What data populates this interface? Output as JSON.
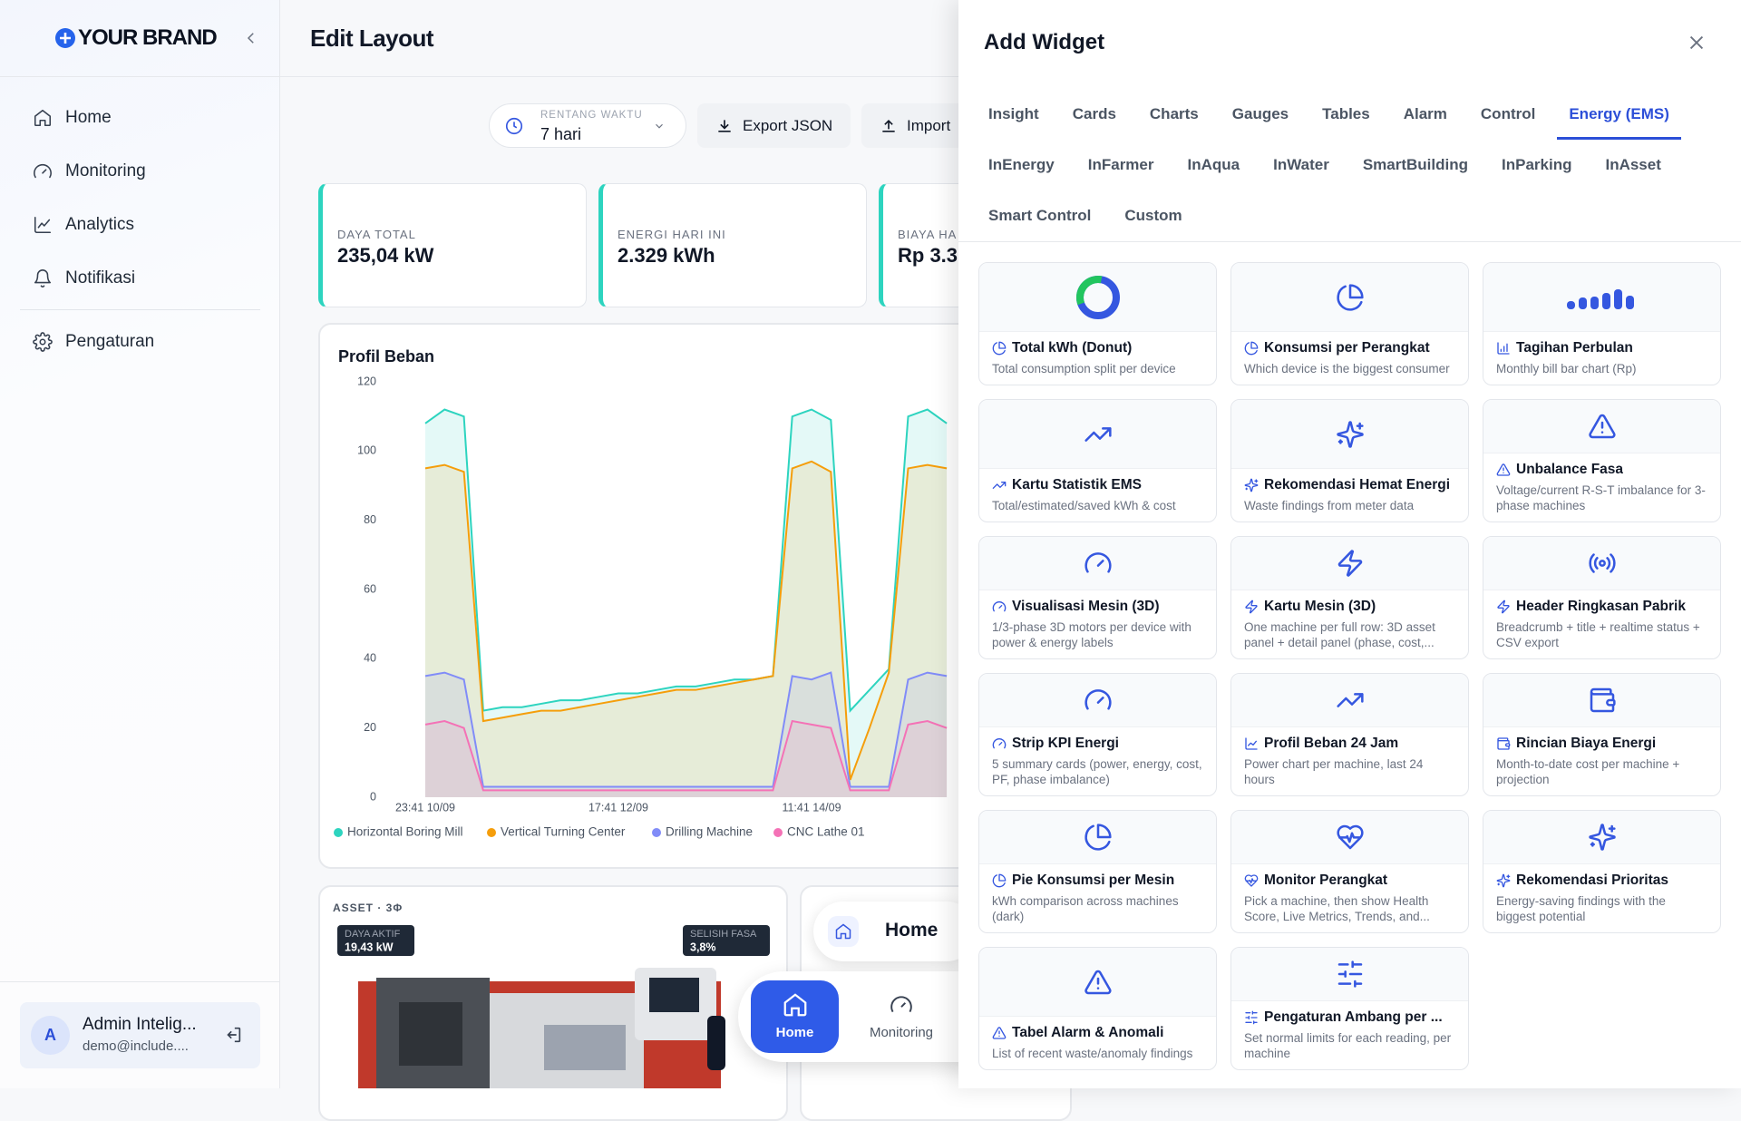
{
  "sidebar": {
    "brand": "YOUR BRAND",
    "nav": [
      "Home",
      "Monitoring",
      "Analytics",
      "Notifikasi",
      "Pengaturan"
    ],
    "user": {
      "initial": "A",
      "name": "Admin Intelig...",
      "email": "demo@include...."
    }
  },
  "header": {
    "title": "Edit Layout"
  },
  "toolbar": {
    "range_label": "RENTANG WAKTU",
    "range_value": "7 hari",
    "export": "Export JSON",
    "import": "Import"
  },
  "kpis": [
    {
      "label": "DAYA TOTAL",
      "value": "235,04 kW"
    },
    {
      "label": "ENERGI HARI INI",
      "value": "2.329 kWh"
    },
    {
      "label": "BIAYA HA",
      "value": "Rp 3.3"
    }
  ],
  "load_chart": {
    "type": "line",
    "title": "Profil Beban",
    "ylim": [
      0,
      120
    ],
    "yticks": [
      0,
      20,
      40,
      60,
      80,
      100,
      120
    ],
    "categories": [
      "23:41 10/09",
      null,
      null,
      null,
      null,
      null,
      null,
      null,
      null,
      null,
      "17:41 12/09",
      null,
      null,
      null,
      null,
      null,
      null,
      null,
      null,
      null,
      "11:41 14/09",
      null,
      null,
      null,
      null,
      null,
      null,
      null
    ],
    "series": [
      {
        "name": "Horizontal Boring Mill",
        "color": "#2dd4bf",
        "values": [
          108,
          112,
          110,
          25,
          26,
          26,
          27,
          28,
          28,
          29,
          30,
          30,
          31,
          32,
          32,
          33,
          34,
          34,
          35,
          110,
          112,
          109,
          25,
          31,
          37,
          110,
          112,
          108
        ]
      },
      {
        "name": "Vertical Turning Center",
        "color": "#f59e0b",
        "values": [
          95,
          96,
          94,
          22,
          23,
          24,
          25,
          25,
          26,
          27,
          28,
          29,
          30,
          31,
          31,
          32,
          33,
          34,
          35,
          95,
          97,
          94,
          5,
          20,
          36,
          95,
          96,
          95
        ]
      },
      {
        "name": "Drilling Machine",
        "color": "#818cf8",
        "values": [
          35,
          36,
          34,
          3,
          3,
          3,
          3,
          3,
          3,
          3,
          3,
          3,
          3,
          3,
          3,
          3,
          3,
          3,
          3,
          35,
          34,
          36,
          3,
          3,
          3,
          34,
          36,
          35
        ]
      },
      {
        "name": "CNC Lathe 01",
        "color": "#f472b6",
        "values": [
          21,
          22,
          20,
          2,
          2,
          2,
          2,
          2,
          2,
          2,
          2,
          2,
          2,
          2,
          2,
          2,
          2,
          2,
          2,
          22,
          21,
          20,
          2,
          2,
          2,
          21,
          22,
          20
        ]
      }
    ]
  },
  "asset": {
    "label": "ASSET · 3Φ",
    "badges": [
      {
        "label": "DAYA AKTIF",
        "value": "19,43 kW"
      },
      {
        "label": "SELISIH FASA",
        "value": "3,8%"
      }
    ]
  },
  "floating": {
    "chip": "Home",
    "nav": [
      "Home",
      "Monitoring"
    ]
  },
  "drawer": {
    "title": "Add Widget",
    "active_tab": "Energy (EMS)",
    "tabs": [
      "Insight",
      "Cards",
      "Charts",
      "Gauges",
      "Tables",
      "Alarm",
      "Control",
      "Energy (EMS)",
      "InEnergy",
      "InFarmer",
      "InAqua",
      "InWater",
      "SmartBuilding",
      "InParking",
      "InAsset",
      "Smart Control",
      "Custom"
    ],
    "widgets": [
      {
        "title": "Total kWh (Donut)",
        "desc": "Total consumption split per device"
      },
      {
        "title": "Konsumsi per Perangkat",
        "desc": "Which device is the biggest consumer"
      },
      {
        "title": "Tagihan Perbulan",
        "desc": "Monthly bill bar chart (Rp)"
      },
      {
        "title": "Kartu Statistik EMS",
        "desc": "Total/estimated/saved kWh & cost"
      },
      {
        "title": "Rekomendasi Hemat Energi",
        "desc": "Waste findings from meter data"
      },
      {
        "title": "Unbalance Fasa",
        "desc": "Voltage/current R-S-T imbalance for 3-phase machines"
      },
      {
        "title": "Visualisasi Mesin (3D)",
        "desc": "1/3-phase 3D motors per device with power & energy labels"
      },
      {
        "title": "Kartu Mesin (3D)",
        "desc": "One machine per full row: 3D asset panel + detail panel (phase, cost,..."
      },
      {
        "title": "Header Ringkasan Pabrik",
        "desc": "Breadcrumb + title + realtime status + CSV export"
      },
      {
        "title": "Strip KPI Energi",
        "desc": "5 summary cards (power, energy, cost, PF, phase imbalance)"
      },
      {
        "title": "Profil Beban 24 Jam",
        "desc": "Power chart per machine, last 24 hours"
      },
      {
        "title": "Rincian Biaya Energi",
        "desc": "Month-to-date cost per machine + projection"
      },
      {
        "title": "Pie Konsumsi per Mesin",
        "desc": "kWh comparison across machines (dark)"
      },
      {
        "title": "Monitor Perangkat",
        "desc": "Pick a machine, then show Health Score, Live Metrics, Trends, and..."
      },
      {
        "title": "Rekomendasi Prioritas",
        "desc": "Energy-saving findings with the biggest potential"
      },
      {
        "title": "Tabel Alarm & Anomali",
        "desc": "List of recent waste/anomaly findings"
      },
      {
        "title": "Pengaturan Ambang per ...",
        "desc": "Set normal limits for each reading, per machine"
      }
    ]
  }
}
